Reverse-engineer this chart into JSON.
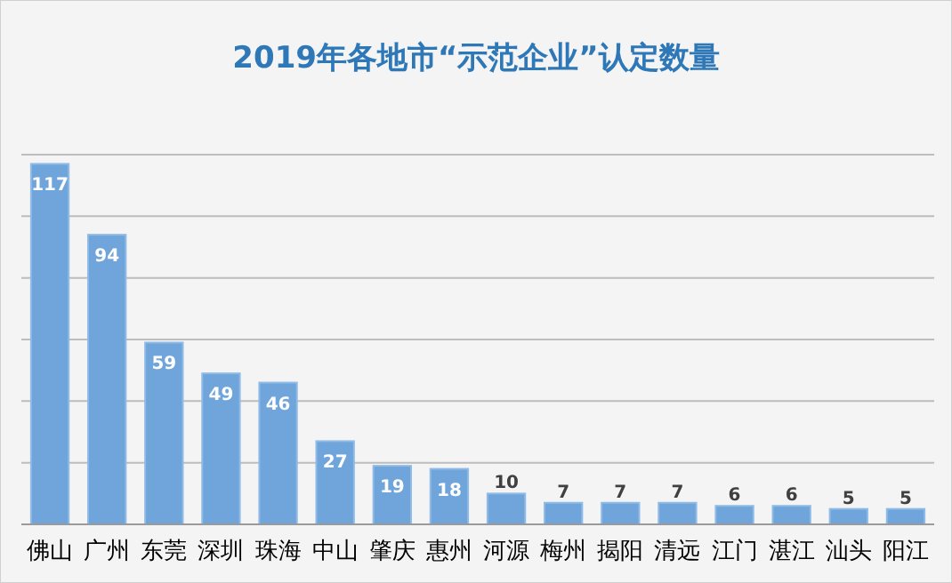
{
  "chart_data": {
    "type": "bar",
    "title": "2019年各地市“示范企业”认定数量",
    "categories": [
      "佛山",
      "广州",
      "东莞",
      "深圳",
      "珠海",
      "中山",
      "肇庆",
      "惠州",
      "河源",
      "梅州",
      "揭阳",
      "清远",
      "江门",
      "湛江",
      "汕头",
      "阳江"
    ],
    "values": [
      117,
      94,
      59,
      49,
      46,
      27,
      19,
      18,
      10,
      7,
      7,
      7,
      6,
      6,
      5,
      5
    ],
    "color": "#6fa5da",
    "ylim": [
      0,
      120
    ],
    "yticks": [
      {
        "value": 0,
        "label": null
      },
      {
        "value": 20,
        "label": null
      },
      {
        "value": 40,
        "label": null
      },
      {
        "value": 60,
        "label": null
      },
      {
        "value": 80,
        "label": null
      },
      {
        "value": 100,
        "label": null
      },
      {
        "value": 120,
        "label": null
      }
    ],
    "grid": "y",
    "data_labels": true,
    "tick_labels": "x"
  }
}
